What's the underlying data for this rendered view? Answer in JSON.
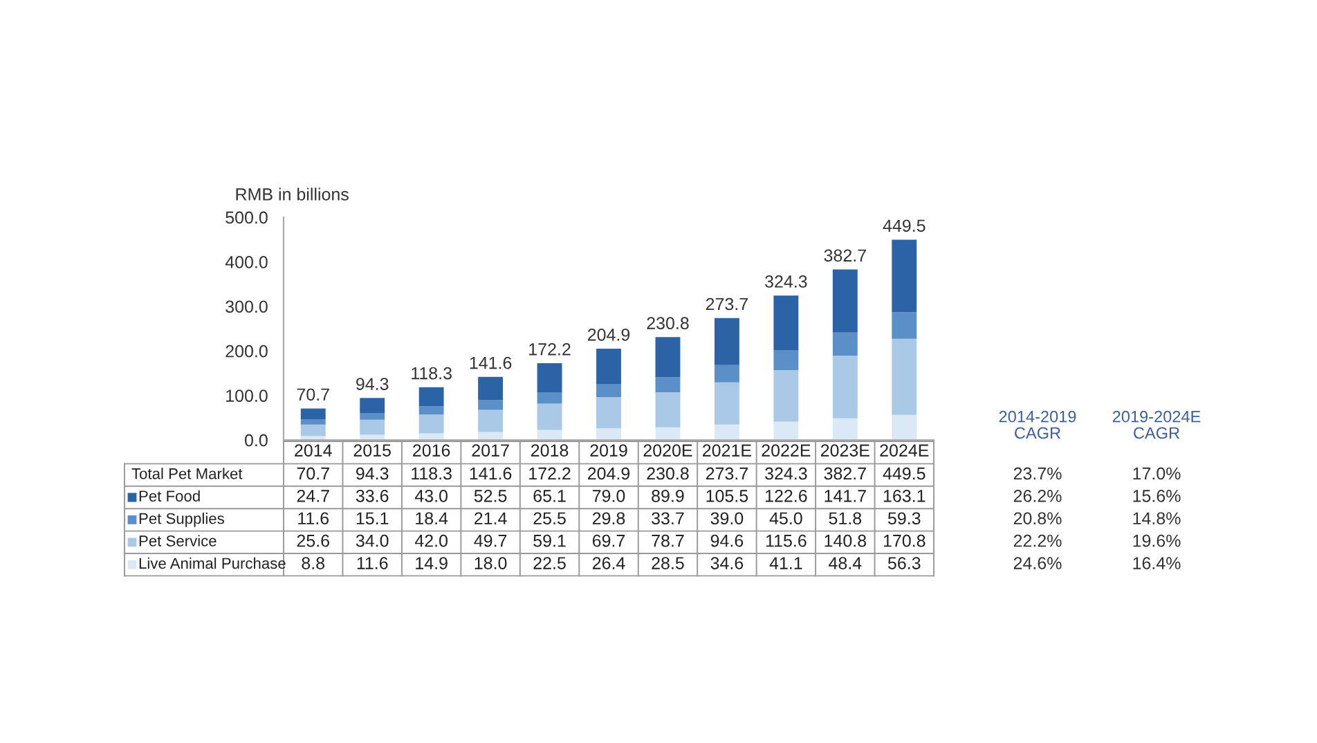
{
  "chart_data": {
    "type": "bar",
    "stacked": true,
    "ylabel": "RMB in billions",
    "categories": [
      "2014",
      "2015",
      "2016",
      "2017",
      "2018",
      "2019",
      "2020E",
      "2021E",
      "2022E",
      "2023E",
      "2024E"
    ],
    "series": [
      {
        "name": "Live Animal Purchase",
        "color": "#dbe8f5",
        "values": [
          8.8,
          11.6,
          14.9,
          18.0,
          22.5,
          26.4,
          28.5,
          34.6,
          41.1,
          48.4,
          56.3
        ],
        "value_labels": [
          "8.8",
          "11.6",
          "14.9",
          "18.0",
          "22.5",
          "26.4",
          "28.5",
          "34.6",
          "41.1",
          "48.4",
          "56.3"
        ]
      },
      {
        "name": "Pet Service",
        "color": "#a9c9e6",
        "values": [
          25.6,
          34.0,
          42.0,
          49.7,
          59.1,
          69.7,
          78.7,
          94.6,
          115.6,
          140.8,
          170.8
        ],
        "value_labels": [
          "25.6",
          "34.0",
          "42.0",
          "49.7",
          "59.1",
          "69.7",
          "78.7",
          "94.6",
          "115.6",
          "140.8",
          "170.8"
        ]
      },
      {
        "name": "Pet Supplies",
        "color": "#5b8fc7",
        "values": [
          11.6,
          15.1,
          18.4,
          21.4,
          25.5,
          29.8,
          33.7,
          39.0,
          45.0,
          51.8,
          59.3
        ],
        "value_labels": [
          "11.6",
          "15.1",
          "18.4",
          "21.4",
          "25.5",
          "29.8",
          "33.7",
          "39.0",
          "45.0",
          "51.8",
          "59.3"
        ]
      },
      {
        "name": "Pet Food",
        "color": "#2b63a6",
        "values": [
          24.7,
          33.6,
          43.0,
          52.5,
          65.1,
          79.0,
          89.9,
          105.5,
          122.6,
          141.7,
          163.1
        ],
        "value_labels": [
          "24.7",
          "33.6",
          "43.0",
          "52.5",
          "65.1",
          "79.0",
          "89.9",
          "105.5",
          "122.6",
          "141.7",
          "163.1"
        ]
      }
    ],
    "totals": [
      "70.7",
      "94.3",
      "118.3",
      "141.6",
      "172.2",
      "204.9",
      "230.8",
      "273.7",
      "324.3",
      "382.7",
      "449.5"
    ],
    "ylim": [
      0,
      500
    ],
    "yticks": [
      {
        "value": 0,
        "label": "0.0"
      },
      {
        "value": 100,
        "label": "100.0"
      },
      {
        "value": 200,
        "label": "200.0"
      },
      {
        "value": 300,
        "label": "300.0"
      },
      {
        "value": 400,
        "label": "400.0"
      },
      {
        "value": 500,
        "label": "500.0"
      }
    ],
    "grid": false,
    "legend": "bottom left",
    "annotations": [
      "Total Pet Market",
      "2014-2019\nCAGR",
      "2019-2024E\nCAGR",
      "23.7%",
      "17.0%",
      "26.2%",
      "15.6%",
      "20.8%",
      "14.8%",
      "22.2%",
      "19.6%",
      "24.6%",
      "16.4%"
    ]
  }
}
